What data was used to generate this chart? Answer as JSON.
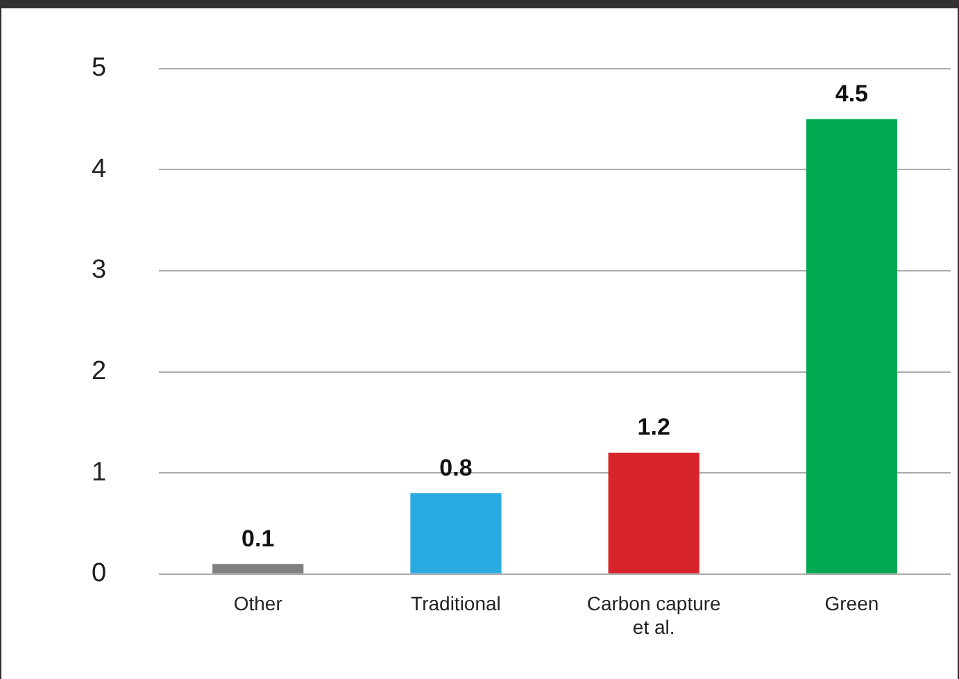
{
  "chart_data": {
    "type": "bar",
    "categories": [
      "Other",
      "Traditional",
      "Carbon capture et al.",
      "Green"
    ],
    "values": [
      0.1,
      0.8,
      1.2,
      4.5
    ],
    "colors": [
      "#808080",
      "#29abe2",
      "#d7232a",
      "#00a84f"
    ],
    "ylim": [
      0,
      5
    ],
    "yticks": [
      0,
      1,
      2,
      3,
      4,
      5
    ],
    "grid": "y",
    "legend": false,
    "data_labels": true
  }
}
